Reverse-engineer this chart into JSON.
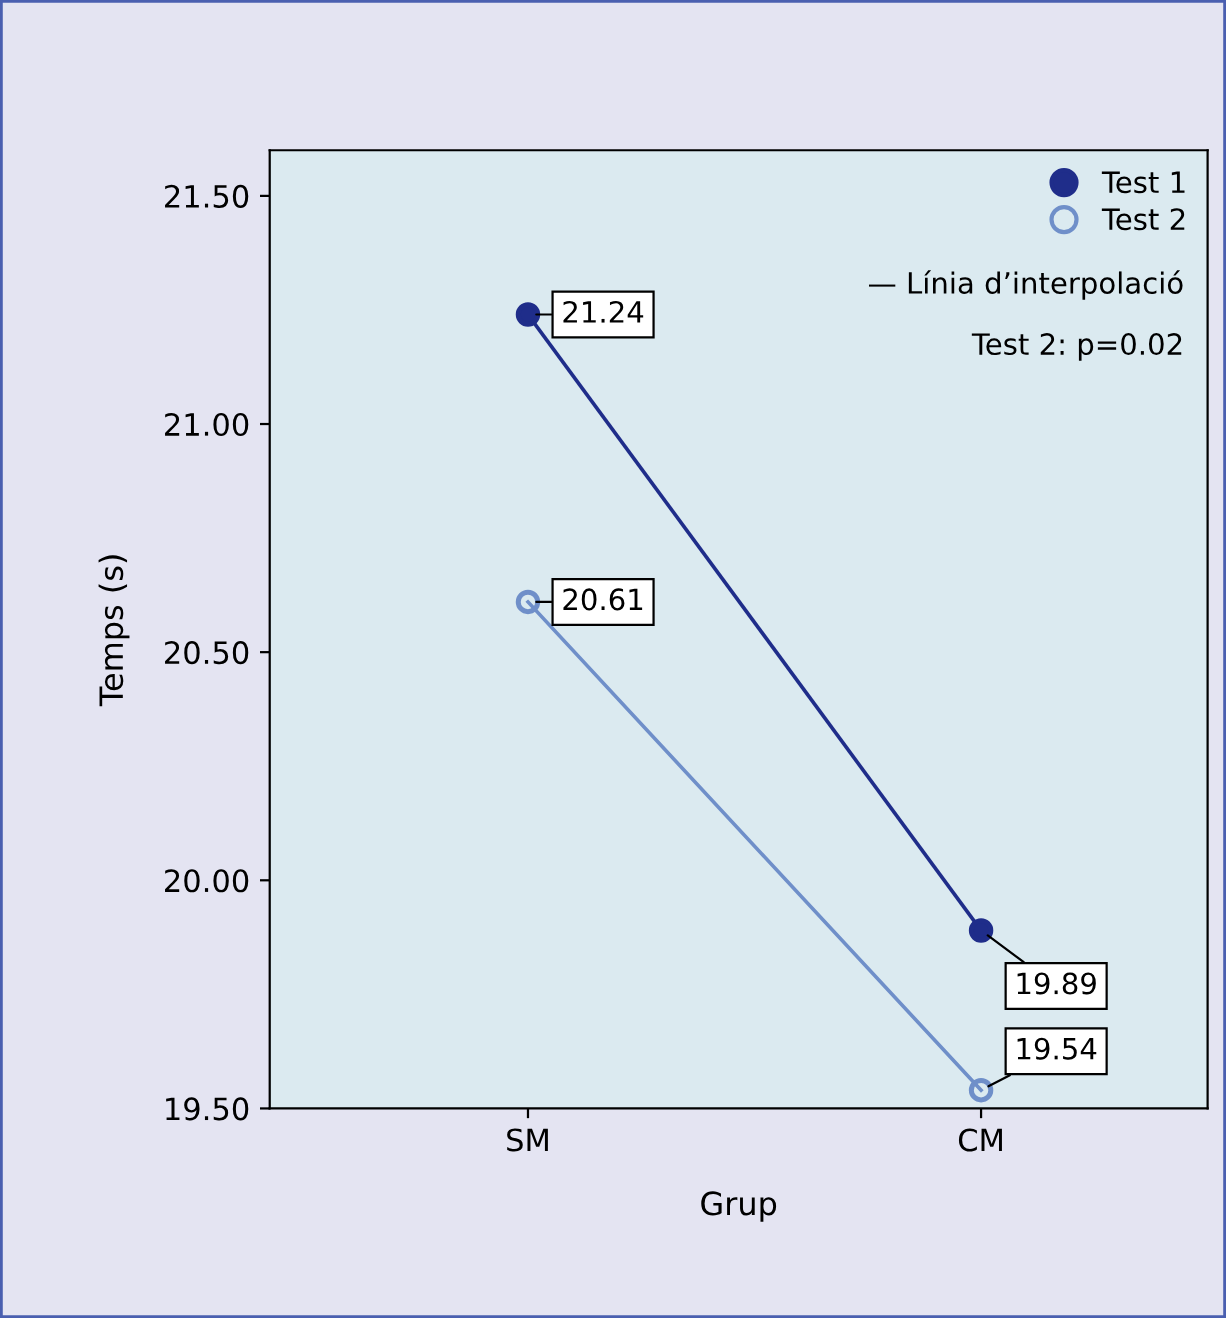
{
  "chart_data": {
    "type": "line",
    "xlabel": "Grup",
    "ylabel": "Temps (s)",
    "categories": [
      "SM",
      "CM"
    ],
    "series": [
      {
        "name": "Test 1",
        "color": "#1f2d8a",
        "values": [
          21.24,
          19.89
        ]
      },
      {
        "name": "Test 2",
        "color": "#6f8fc9",
        "values": [
          20.61,
          19.54
        ]
      }
    ],
    "ylim": [
      19.5,
      21.6
    ],
    "yticks": [
      {
        "value": 19.5,
        "label": "19.50"
      },
      {
        "value": 20.0,
        "label": "20.00"
      },
      {
        "value": 20.5,
        "label": "20.50"
      },
      {
        "value": 21.0,
        "label": "21.00"
      },
      {
        "value": 21.5,
        "label": "21.50"
      }
    ],
    "data_labels": true,
    "marker": "circle",
    "line_style": "solid",
    "legend": "top right",
    "grid": false,
    "annotations": [
      "— Línia d’interpolació",
      "Test 2: p=0.02"
    ]
  }
}
